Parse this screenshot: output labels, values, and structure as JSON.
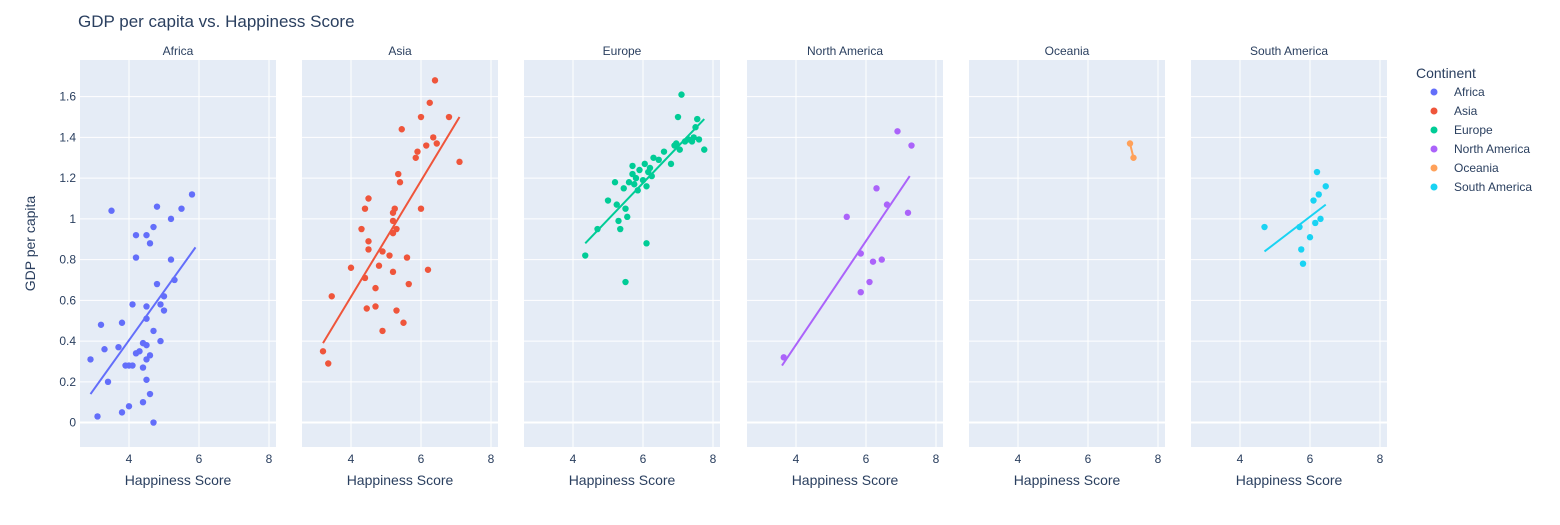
{
  "chart_data": {
    "type": "scatter",
    "title": "GDP per capita vs. Happiness Score",
    "xlabel": "Happiness Score",
    "ylabel": "GDP per capita",
    "xlim": [
      2.6,
      8.2
    ],
    "ylim": [
      -0.12,
      1.78
    ],
    "x_ticks": [
      4,
      6,
      8
    ],
    "y_ticks": [
      0,
      0.2,
      0.4,
      0.6,
      0.8,
      1,
      1.2,
      1.4,
      1.6
    ],
    "y_tick_labels": [
      "0",
      "0.2",
      "0.4",
      "0.6",
      "0.8",
      "1",
      "1.2",
      "1.4",
      "1.6"
    ],
    "grid": true,
    "trendline": "ols",
    "legend_title": "Continent",
    "legend_position": "right",
    "facets": [
      {
        "name": "Africa",
        "color": "#636efa",
        "points": [
          [
            2.9,
            0.31
          ],
          [
            3.1,
            0.03
          ],
          [
            3.2,
            0.48
          ],
          [
            3.3,
            0.36
          ],
          [
            3.4,
            0.2
          ],
          [
            3.5,
            1.04
          ],
          [
            3.7,
            0.37
          ],
          [
            3.8,
            0.49
          ],
          [
            3.8,
            0.05
          ],
          [
            3.9,
            0.28
          ],
          [
            4.0,
            0.28
          ],
          [
            4.0,
            0.08
          ],
          [
            4.1,
            0.58
          ],
          [
            4.1,
            0.28
          ],
          [
            4.2,
            0.92
          ],
          [
            4.2,
            0.81
          ],
          [
            4.2,
            0.34
          ],
          [
            4.3,
            0.35
          ],
          [
            4.4,
            0.39
          ],
          [
            4.4,
            0.27
          ],
          [
            4.4,
            0.1
          ],
          [
            4.5,
            0.92
          ],
          [
            4.5,
            0.57
          ],
          [
            4.5,
            0.51
          ],
          [
            4.5,
            0.38
          ],
          [
            4.5,
            0.31
          ],
          [
            4.5,
            0.21
          ],
          [
            4.6,
            0.88
          ],
          [
            4.6,
            0.33
          ],
          [
            4.6,
            0.14
          ],
          [
            4.7,
            0.96
          ],
          [
            4.7,
            0.45
          ],
          [
            4.7,
            0.0
          ],
          [
            4.8,
            1.06
          ],
          [
            4.8,
            0.68
          ],
          [
            4.9,
            0.58
          ],
          [
            4.9,
            0.4
          ],
          [
            5.0,
            0.62
          ],
          [
            5.0,
            0.55
          ],
          [
            5.2,
            1.0
          ],
          [
            5.2,
            0.8
          ],
          [
            5.3,
            0.7
          ],
          [
            5.5,
            1.05
          ],
          [
            5.8,
            1.12
          ]
        ],
        "trend": [
          [
            2.9,
            0.14
          ],
          [
            5.9,
            0.86
          ]
        ]
      },
      {
        "name": "Asia",
        "color": "#ef553b",
        "points": [
          [
            3.2,
            0.35
          ],
          [
            3.35,
            0.29
          ],
          [
            3.45,
            0.62
          ],
          [
            4.0,
            0.76
          ],
          [
            4.3,
            0.95
          ],
          [
            4.4,
            1.05
          ],
          [
            4.4,
            0.71
          ],
          [
            4.45,
            0.56
          ],
          [
            4.5,
            1.1
          ],
          [
            4.5,
            0.89
          ],
          [
            4.5,
            0.85
          ],
          [
            4.7,
            0.66
          ],
          [
            4.7,
            0.57
          ],
          [
            4.8,
            0.77
          ],
          [
            4.9,
            0.84
          ],
          [
            4.9,
            0.45
          ],
          [
            5.1,
            0.82
          ],
          [
            5.2,
            1.03
          ],
          [
            5.2,
            0.99
          ],
          [
            5.2,
            0.93
          ],
          [
            5.2,
            0.74
          ],
          [
            5.25,
            1.05
          ],
          [
            5.3,
            0.95
          ],
          [
            5.3,
            0.55
          ],
          [
            5.35,
            1.22
          ],
          [
            5.4,
            1.18
          ],
          [
            5.45,
            1.44
          ],
          [
            5.5,
            0.49
          ],
          [
            5.6,
            0.81
          ],
          [
            5.65,
            0.68
          ],
          [
            5.85,
            1.3
          ],
          [
            5.9,
            1.33
          ],
          [
            6.0,
            1.5
          ],
          [
            6.0,
            1.05
          ],
          [
            6.15,
            1.36
          ],
          [
            6.2,
            0.75
          ],
          [
            6.25,
            1.57
          ],
          [
            6.35,
            1.4
          ],
          [
            6.4,
            1.68
          ],
          [
            6.45,
            1.37
          ],
          [
            6.8,
            1.5
          ],
          [
            7.1,
            1.28
          ]
        ],
        "trend": [
          [
            3.2,
            0.39
          ],
          [
            7.1,
            1.5
          ]
        ]
      },
      {
        "name": "Europe",
        "color": "#00cc96",
        "points": [
          [
            4.35,
            0.82
          ],
          [
            4.7,
            0.95
          ],
          [
            5.0,
            1.09
          ],
          [
            5.2,
            1.18
          ],
          [
            5.25,
            1.07
          ],
          [
            5.3,
            0.99
          ],
          [
            5.35,
            0.95
          ],
          [
            5.45,
            1.15
          ],
          [
            5.5,
            1.05
          ],
          [
            5.5,
            0.69
          ],
          [
            5.55,
            1.01
          ],
          [
            5.6,
            1.18
          ],
          [
            5.7,
            1.26
          ],
          [
            5.7,
            1.22
          ],
          [
            5.75,
            1.17
          ],
          [
            5.8,
            1.2
          ],
          [
            5.85,
            1.14
          ],
          [
            5.9,
            1.24
          ],
          [
            6.0,
            1.19
          ],
          [
            6.05,
            1.27
          ],
          [
            6.1,
            1.16
          ],
          [
            6.1,
            0.88
          ],
          [
            6.15,
            1.23
          ],
          [
            6.2,
            1.25
          ],
          [
            6.25,
            1.21
          ],
          [
            6.3,
            1.3
          ],
          [
            6.45,
            1.29
          ],
          [
            6.6,
            1.33
          ],
          [
            6.8,
            1.27
          ],
          [
            6.9,
            1.36
          ],
          [
            6.95,
            1.37
          ],
          [
            7.0,
            1.5
          ],
          [
            7.05,
            1.34
          ],
          [
            7.1,
            1.61
          ],
          [
            7.2,
            1.38
          ],
          [
            7.3,
            1.39
          ],
          [
            7.4,
            1.38
          ],
          [
            7.45,
            1.4
          ],
          [
            7.5,
            1.45
          ],
          [
            7.55,
            1.49
          ],
          [
            7.6,
            1.39
          ],
          [
            7.75,
            1.34
          ]
        ],
        "trend": [
          [
            4.35,
            0.88
          ],
          [
            7.75,
            1.49
          ]
        ]
      },
      {
        "name": "North America",
        "color": "#ab63fa",
        "points": [
          [
            3.65,
            0.32
          ],
          [
            5.45,
            1.01
          ],
          [
            5.85,
            0.83
          ],
          [
            5.85,
            0.64
          ],
          [
            6.1,
            0.69
          ],
          [
            6.2,
            0.79
          ],
          [
            6.3,
            1.15
          ],
          [
            6.45,
            0.8
          ],
          [
            6.6,
            1.07
          ],
          [
            6.9,
            1.43
          ],
          [
            7.2,
            1.03
          ],
          [
            7.3,
            1.36
          ]
        ],
        "trend": [
          [
            3.6,
            0.28
          ],
          [
            7.25,
            1.21
          ]
        ]
      },
      {
        "name": "Oceania",
        "color": "#ffa15a",
        "points": [
          [
            7.2,
            1.37
          ],
          [
            7.3,
            1.3
          ]
        ],
        "trend": [
          [
            7.2,
            1.37
          ],
          [
            7.3,
            1.3
          ]
        ]
      },
      {
        "name": "South America",
        "color": "#19d3f3",
        "points": [
          [
            4.7,
            0.96
          ],
          [
            5.7,
            0.96
          ],
          [
            5.75,
            0.85
          ],
          [
            5.8,
            0.78
          ],
          [
            6.0,
            0.91
          ],
          [
            6.1,
            1.09
          ],
          [
            6.15,
            0.98
          ],
          [
            6.2,
            1.23
          ],
          [
            6.25,
            1.12
          ],
          [
            6.3,
            1.0
          ],
          [
            6.45,
            1.16
          ]
        ],
        "trend": [
          [
            4.7,
            0.84
          ],
          [
            6.45,
            1.07
          ]
        ]
      }
    ]
  }
}
